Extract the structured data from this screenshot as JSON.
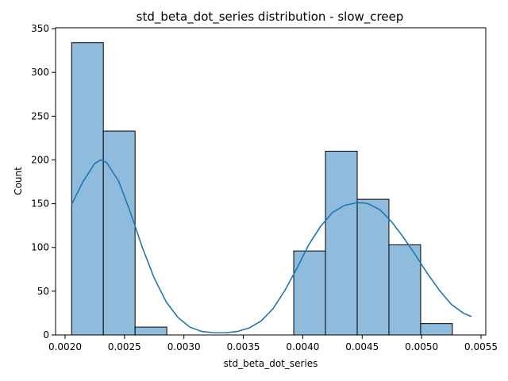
{
  "chart_data": {
    "type": "bar",
    "title": "std_beta_dot_series distribution - slow_creep",
    "xlabel": "std_beta_dot_series",
    "ylabel": "Count",
    "xlim": [
      0.00192,
      0.00554
    ],
    "ylim": [
      0,
      351
    ],
    "x_ticks": [
      0.002,
      0.0025,
      0.003,
      0.0035,
      0.004,
      0.0045,
      0.005,
      0.0055
    ],
    "x_tick_labels": [
      "0.0020",
      "0.0025",
      "0.0030",
      "0.0035",
      "0.0040",
      "0.0045",
      "0.0050",
      "0.0055"
    ],
    "y_ticks": [
      0,
      50,
      100,
      150,
      200,
      250,
      300,
      350
    ],
    "y_tick_labels": [
      "0",
      "50",
      "100",
      "150",
      "200",
      "250",
      "300",
      "350"
    ],
    "bins": [
      {
        "x0": 0.002055,
        "x1": 0.002322,
        "count": 334
      },
      {
        "x0": 0.002322,
        "x1": 0.002589,
        "count": 233
      },
      {
        "x0": 0.002589,
        "x1": 0.002856,
        "count": 9
      },
      {
        "x0": 0.002856,
        "x1": 0.003123,
        "count": 0
      },
      {
        "x0": 0.003123,
        "x1": 0.00339,
        "count": 0
      },
      {
        "x0": 0.00339,
        "x1": 0.003657,
        "count": 0
      },
      {
        "x0": 0.003657,
        "x1": 0.003924,
        "count": 0
      },
      {
        "x0": 0.003924,
        "x1": 0.004191,
        "count": 96
      },
      {
        "x0": 0.004191,
        "x1": 0.004458,
        "count": 210
      },
      {
        "x0": 0.004458,
        "x1": 0.004725,
        "count": 155
      },
      {
        "x0": 0.004725,
        "x1": 0.004992,
        "count": 103
      },
      {
        "x0": 0.004992,
        "x1": 0.005259,
        "count": 13
      }
    ],
    "kde": {
      "x": [
        0.002055,
        0.00215,
        0.00225,
        0.0023,
        0.00235,
        0.00245,
        0.00255,
        0.00265,
        0.00275,
        0.00285,
        0.00295,
        0.00305,
        0.00315,
        0.00325,
        0.00335,
        0.00345,
        0.00355,
        0.00365,
        0.00375,
        0.00385,
        0.00395,
        0.00405,
        0.00415,
        0.00425,
        0.00435,
        0.00445,
        0.0045,
        0.00455,
        0.00465,
        0.00475,
        0.00485,
        0.00495,
        0.00505,
        0.00515,
        0.00525,
        0.00535,
        0.00542
      ],
      "y": [
        149,
        175,
        196,
        200,
        197,
        176,
        140,
        100,
        65,
        38,
        20,
        9,
        4,
        2.5,
        2.5,
        4,
        8,
        16,
        30,
        51,
        76,
        103,
        124,
        140,
        148,
        151,
        151,
        150,
        143,
        129,
        111,
        91,
        70,
        51,
        35,
        25,
        21
      ]
    },
    "bar_color": "#8fbcdd",
    "kde_color": "#1f77b4",
    "grid": false,
    "legend": "none"
  }
}
